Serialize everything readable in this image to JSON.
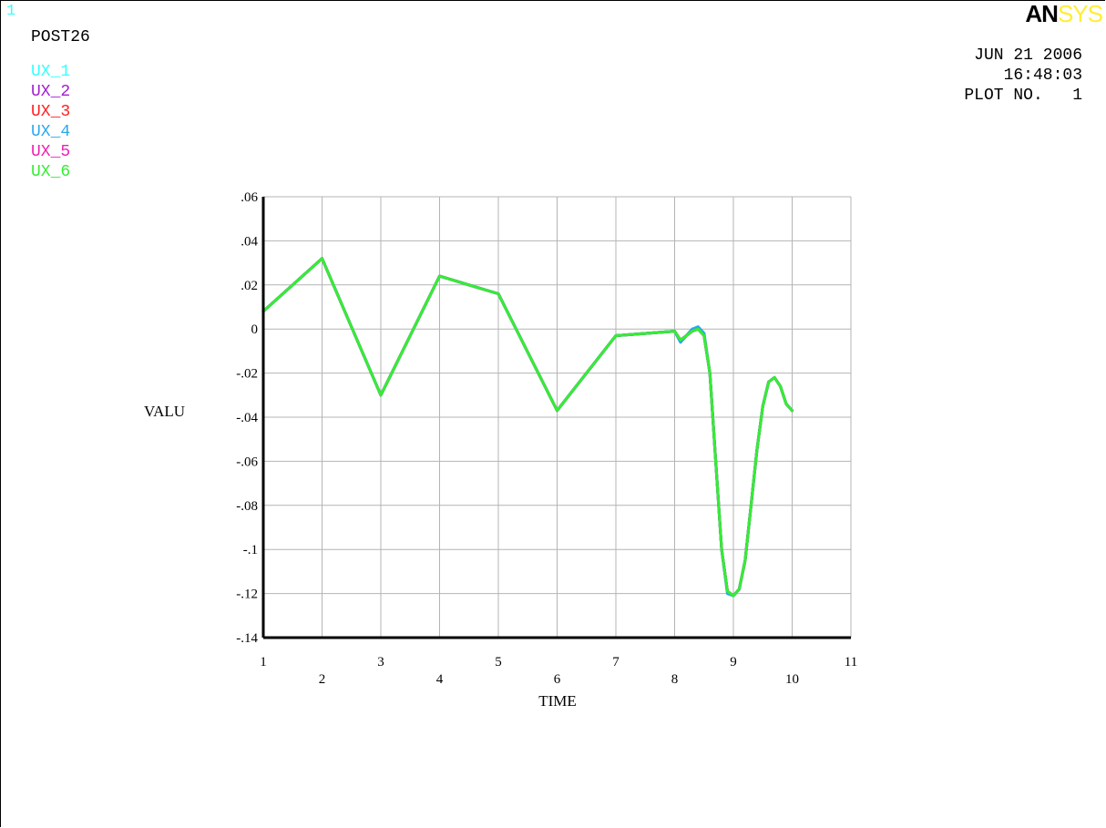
{
  "header": {
    "window_number": "1",
    "post_label": "POST26",
    "logo_bold": "AN",
    "logo_light": "SYS",
    "date": "JUN 21 2006",
    "time": "16:48:03",
    "plot_no_label": "PLOT NO.",
    "plot_no": "1"
  },
  "legend": [
    {
      "label": "UX_1",
      "color": "#33ffff"
    },
    {
      "label": "UX_2",
      "color": "#a020d0"
    },
    {
      "label": "UX_3",
      "color": "#ff2020"
    },
    {
      "label": "UX_4",
      "color": "#2aa8ee"
    },
    {
      "label": "UX_5",
      "color": "#f020b0"
    },
    {
      "label": "UX_6",
      "color": "#33ee33"
    }
  ],
  "chart_data": {
    "type": "line",
    "xlabel": "TIME",
    "ylabel": "VALU",
    "xlim": [
      1,
      11
    ],
    "ylim": [
      -0.14,
      0.06
    ],
    "x_ticks": [
      "1",
      "2",
      "3",
      "4",
      "5",
      "6",
      "7",
      "8",
      "9",
      "10",
      "11"
    ],
    "y_ticks": [
      ".06",
      ".04",
      ".02",
      "0",
      "-.02",
      "-.04",
      "-.06",
      "-.08",
      "-.1",
      "-.12",
      "-.14"
    ],
    "grid": true,
    "series": [
      {
        "name": "UX_1",
        "color": "#33ffff",
        "x": [
          1,
          2,
          3,
          4,
          5,
          6,
          7,
          8,
          8.1,
          8.2,
          8.3,
          8.4,
          8.5,
          8.6,
          8.7,
          8.8,
          8.9,
          9.0,
          9.1,
          9.2,
          9.3,
          9.4,
          9.5,
          9.6,
          9.7,
          9.8,
          9.9,
          10.0
        ],
        "y": [
          0.008,
          0.032,
          -0.03,
          0.024,
          0.016,
          -0.037,
          -0.003,
          -0.001,
          -0.005,
          -0.003,
          -0.001,
          0.0,
          -0.003,
          -0.02,
          -0.06,
          -0.1,
          -0.119,
          -0.121,
          -0.118,
          -0.105,
          -0.08,
          -0.055,
          -0.035,
          -0.024,
          -0.022,
          -0.026,
          -0.034,
          -0.037
        ]
      },
      {
        "name": "UX_2",
        "color": "#a020d0",
        "x": [
          1,
          2,
          3,
          4,
          5,
          6,
          7,
          8,
          8.1,
          8.2,
          8.3,
          8.4,
          8.5,
          8.6,
          8.7,
          8.8,
          8.9,
          9.0,
          9.1,
          9.2,
          9.3,
          9.4,
          9.5,
          9.6,
          9.7,
          9.8,
          9.9,
          10.0
        ],
        "y": [
          0.008,
          0.032,
          -0.03,
          0.024,
          0.016,
          -0.037,
          -0.003,
          -0.001,
          -0.005,
          -0.003,
          -0.001,
          0.0,
          -0.003,
          -0.02,
          -0.06,
          -0.1,
          -0.119,
          -0.121,
          -0.118,
          -0.105,
          -0.08,
          -0.055,
          -0.035,
          -0.024,
          -0.022,
          -0.026,
          -0.034,
          -0.037
        ]
      },
      {
        "name": "UX_3",
        "color": "#ff2020",
        "x": [
          1,
          2,
          3,
          4,
          5,
          6,
          7,
          8,
          8.1,
          8.2,
          8.3,
          8.4,
          8.5,
          8.6,
          8.7,
          8.8,
          8.9,
          9.0,
          9.1,
          9.2,
          9.3,
          9.4,
          9.5,
          9.6,
          9.7,
          9.8,
          9.9,
          10.0
        ],
        "y": [
          0.008,
          0.032,
          -0.03,
          0.024,
          0.016,
          -0.037,
          -0.003,
          -0.001,
          -0.005,
          -0.003,
          -0.001,
          0.0,
          -0.003,
          -0.02,
          -0.06,
          -0.1,
          -0.119,
          -0.121,
          -0.118,
          -0.105,
          -0.08,
          -0.055,
          -0.035,
          -0.024,
          -0.022,
          -0.026,
          -0.034,
          -0.037
        ]
      },
      {
        "name": "UX_4",
        "color": "#2aa8ee",
        "x": [
          1,
          2,
          3,
          4,
          5,
          6,
          7,
          8,
          8.1,
          8.2,
          8.3,
          8.4,
          8.5,
          8.6,
          8.7,
          8.8,
          8.9,
          9.0,
          9.1,
          9.2,
          9.3,
          9.4,
          9.5,
          9.6,
          9.7,
          9.8,
          9.9,
          10.0
        ],
        "y": [
          0.008,
          0.032,
          -0.03,
          0.024,
          0.016,
          -0.037,
          -0.003,
          -0.001,
          -0.006,
          -0.003,
          0.0,
          0.001,
          -0.002,
          -0.02,
          -0.06,
          -0.1,
          -0.12,
          -0.121,
          -0.118,
          -0.105,
          -0.08,
          -0.055,
          -0.035,
          -0.024,
          -0.022,
          -0.026,
          -0.034,
          -0.037
        ]
      },
      {
        "name": "UX_5",
        "color": "#f020b0",
        "x": [
          1,
          2,
          3,
          4,
          5,
          6,
          7,
          8,
          8.1,
          8.2,
          8.3,
          8.4,
          8.5,
          8.6,
          8.7,
          8.8,
          8.9,
          9.0,
          9.1,
          9.2,
          9.3,
          9.4,
          9.5,
          9.6,
          9.7,
          9.8,
          9.9,
          10.0
        ],
        "y": [
          0.008,
          0.032,
          -0.03,
          0.024,
          0.016,
          -0.037,
          -0.003,
          -0.001,
          -0.005,
          -0.003,
          -0.001,
          0.0,
          -0.003,
          -0.02,
          -0.06,
          -0.1,
          -0.119,
          -0.121,
          -0.118,
          -0.105,
          -0.08,
          -0.055,
          -0.035,
          -0.024,
          -0.022,
          -0.026,
          -0.034,
          -0.037
        ]
      },
      {
        "name": "UX_6",
        "color": "#33ee33",
        "x": [
          1,
          2,
          3,
          4,
          5,
          6,
          7,
          8,
          8.1,
          8.2,
          8.3,
          8.4,
          8.5,
          8.6,
          8.7,
          8.8,
          8.9,
          9.0,
          9.1,
          9.2,
          9.3,
          9.4,
          9.5,
          9.6,
          9.7,
          9.8,
          9.9,
          10.0
        ],
        "y": [
          0.008,
          0.032,
          -0.03,
          0.024,
          0.016,
          -0.037,
          -0.003,
          -0.001,
          -0.005,
          -0.003,
          -0.001,
          0.0,
          -0.003,
          -0.02,
          -0.06,
          -0.1,
          -0.119,
          -0.121,
          -0.118,
          -0.105,
          -0.08,
          -0.055,
          -0.035,
          -0.024,
          -0.022,
          -0.026,
          -0.034,
          -0.037
        ]
      }
    ]
  }
}
